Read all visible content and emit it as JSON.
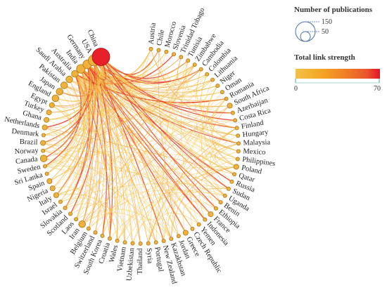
{
  "legend": {
    "size_title": "Number of publications",
    "size_values": [
      "150",
      "50"
    ],
    "strength_title": "Total link strength",
    "strength_min": "0",
    "strength_max": "70",
    "gradient_colors": [
      "#f0c040",
      "#f5a623",
      "#f07d24",
      "#e8542b",
      "#e8202a"
    ]
  },
  "colors": {
    "node_fill": "#f0b13c",
    "node_stroke": "#a87a1a",
    "top_node_fill": "#e8202a",
    "link_weak": "#f2c14a",
    "link_mid": "#f08a2a",
    "link_strong": "#e8322a"
  },
  "nodes": [
    {
      "name": "Austria",
      "size": 1
    },
    {
      "name": "Chile",
      "size": 1
    },
    {
      "name": "Morocco",
      "size": 1
    },
    {
      "name": "Slovenia",
      "size": 1
    },
    {
      "name": "Trinidad Tobago",
      "size": 1
    },
    {
      "name": "Tunisia",
      "size": 1
    },
    {
      "name": "Zimbabwe",
      "size": 1
    },
    {
      "name": "Cambodia",
      "size": 1
    },
    {
      "name": "Colombia",
      "size": 1
    },
    {
      "name": "Lithuania",
      "size": 1
    },
    {
      "name": "Niger",
      "size": 1
    },
    {
      "name": "Oman",
      "size": 1
    },
    {
      "name": "Romania",
      "size": 1
    },
    {
      "name": "South Africa",
      "size": 2
    },
    {
      "name": "Azerbaijan",
      "size": 1
    },
    {
      "name": "Costa Rica",
      "size": 1
    },
    {
      "name": "Finland",
      "size": 1
    },
    {
      "name": "Hungary",
      "size": 1
    },
    {
      "name": "Malaysia",
      "size": 1
    },
    {
      "name": "Mexico",
      "size": 1
    },
    {
      "name": "Philippines",
      "size": 1
    },
    {
      "name": "Poland",
      "size": 2
    },
    {
      "name": "Qatar",
      "size": 1
    },
    {
      "name": "Russia",
      "size": 1
    },
    {
      "name": "Sudan",
      "size": 1
    },
    {
      "name": "Uganda",
      "size": 1
    },
    {
      "name": "Benin",
      "size": 1
    },
    {
      "name": "Ethiopia",
      "size": 1
    },
    {
      "name": "France",
      "size": 2
    },
    {
      "name": "Indonesia",
      "size": 1
    },
    {
      "name": "Yemen",
      "size": 1
    },
    {
      "name": "Czech Republic",
      "size": 1
    },
    {
      "name": "Greece",
      "size": 2
    },
    {
      "name": "Jordan",
      "size": 1
    },
    {
      "name": "Kazakhstan",
      "size": 1
    },
    {
      "name": "New Zealand",
      "size": 1
    },
    {
      "name": "Portugal",
      "size": 1
    },
    {
      "name": "Syria",
      "size": 1
    },
    {
      "name": "Thailand",
      "size": 1
    },
    {
      "name": "Uzbekistan",
      "size": 1
    },
    {
      "name": "Vietnam",
      "size": 1
    },
    {
      "name": "Wales",
      "size": 1
    },
    {
      "name": "Croatia",
      "size": 1
    },
    {
      "name": "South Korea",
      "size": 1
    },
    {
      "name": "Switzerland",
      "size": 1
    },
    {
      "name": "Belgium",
      "size": 1
    },
    {
      "name": "Iran",
      "size": 3
    },
    {
      "name": "Laos",
      "size": 1
    },
    {
      "name": "Scotland",
      "size": 1
    },
    {
      "name": "Slovakia",
      "size": 1
    },
    {
      "name": "Israel",
      "size": 1
    },
    {
      "name": "Italy",
      "size": 2
    },
    {
      "name": "Nigeria",
      "size": 2
    },
    {
      "name": "Spain",
      "size": 2
    },
    {
      "name": "Sri Lanka",
      "size": 1
    },
    {
      "name": "Sweden",
      "size": 1
    },
    {
      "name": "Canada",
      "size": 3
    },
    {
      "name": "Norway",
      "size": 1
    },
    {
      "name": "Brazil",
      "size": 2
    },
    {
      "name": "Denmark",
      "size": 1
    },
    {
      "name": "Netherlands",
      "size": 2
    },
    {
      "name": "Ghana",
      "size": 2
    },
    {
      "name": "Turkey",
      "size": 2
    },
    {
      "name": "Egypt",
      "size": 2
    },
    {
      "name": "England",
      "size": 3
    },
    {
      "name": "Japan",
      "size": 3
    },
    {
      "name": "Pakistan",
      "size": 3
    },
    {
      "name": "Saudi Arabia",
      "size": 3
    },
    {
      "name": "Australia",
      "size": 3
    },
    {
      "name": "India",
      "size": 4
    },
    {
      "name": "Germany",
      "size": 4
    },
    {
      "name": "USA",
      "size": 5
    },
    {
      "name": "China",
      "size": 6
    }
  ]
}
